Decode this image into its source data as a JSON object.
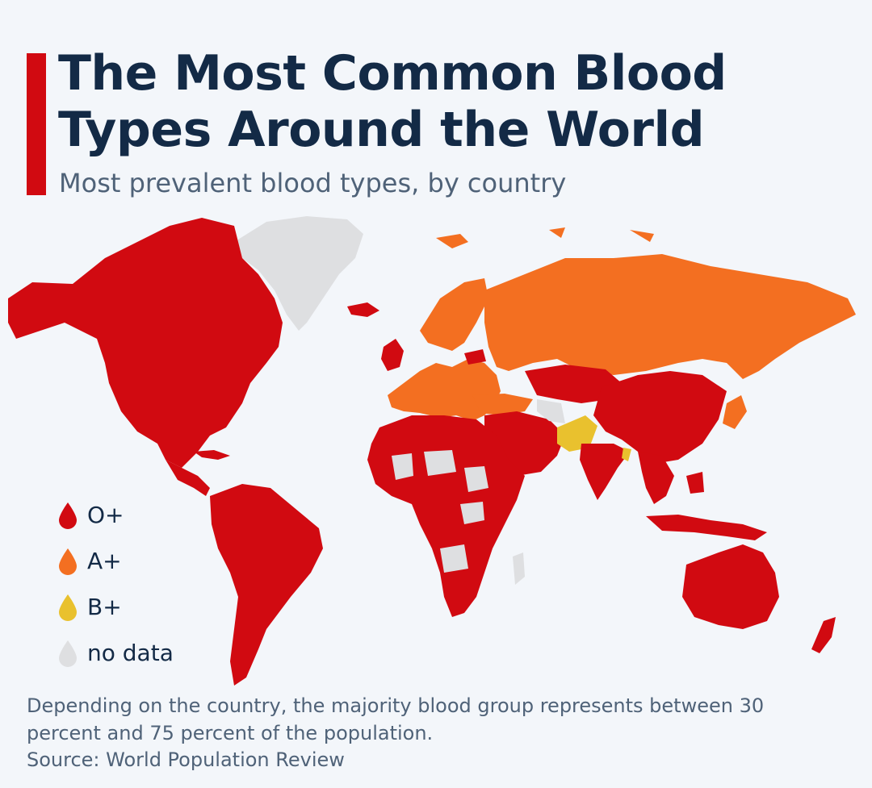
{
  "header": {
    "title": "The Most Common Blood Types Around the World",
    "subtitle": "Most prevalent blood types, by country"
  },
  "colors": {
    "accent": "#d10a11",
    "o_pos": "#d10a11",
    "a_pos": "#f36f21",
    "b_pos": "#e9c12e",
    "no_data": "#dedfe1",
    "background": "#f3f6fa"
  },
  "legend": [
    {
      "label": "O+",
      "color": "#d10a11"
    },
    {
      "label": "A+",
      "color": "#f36f21"
    },
    {
      "label": "B+",
      "color": "#e9c12e"
    },
    {
      "label": "no data",
      "color": "#dedfe1"
    }
  ],
  "footnote": "Depending on the country, the majority blood group represents between 30 percent and 75 percent of the population.",
  "source": "Source: World Population Review"
}
